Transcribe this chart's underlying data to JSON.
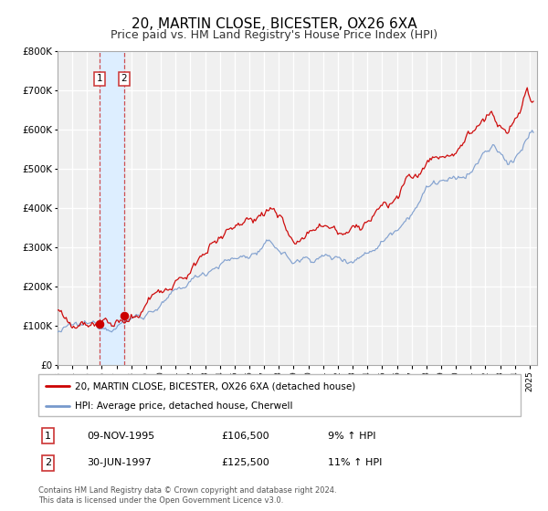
{
  "title": "20, MARTIN CLOSE, BICESTER, OX26 6XA",
  "subtitle": "Price paid vs. HM Land Registry's House Price Index (HPI)",
  "ylim": [
    0,
    800000
  ],
  "yticks": [
    0,
    100000,
    200000,
    300000,
    400000,
    500000,
    600000,
    700000,
    800000
  ],
  "xlim_start": 1993.0,
  "xlim_end": 2025.5,
  "xticks": [
    1993,
    1994,
    1995,
    1996,
    1997,
    1998,
    1999,
    2000,
    2001,
    2002,
    2003,
    2004,
    2005,
    2006,
    2007,
    2008,
    2009,
    2010,
    2011,
    2012,
    2013,
    2014,
    2015,
    2016,
    2017,
    2018,
    2019,
    2020,
    2021,
    2022,
    2023,
    2024,
    2025
  ],
  "sale1_date": 1995.86,
  "sale1_price": 106500,
  "sale2_date": 1997.5,
  "sale2_price": 125500,
  "red_line_color": "#cc0000",
  "blue_line_color": "#7799cc",
  "marker_color": "#cc0000",
  "vband_color": "#ddeeff",
  "vline_color": "#cc3333",
  "legend_label_red": "20, MARTIN CLOSE, BICESTER, OX26 6XA (detached house)",
  "legend_label_blue": "HPI: Average price, detached house, Cherwell",
  "table_row1": [
    "1",
    "09-NOV-1995",
    "£106,500",
    "9% ↑ HPI"
  ],
  "table_row2": [
    "2",
    "30-JUN-1997",
    "£125,500",
    "11% ↑ HPI"
  ],
  "footnote": "Contains HM Land Registry data © Crown copyright and database right 2024.\nThis data is licensed under the Open Government Licence v3.0.",
  "background_color": "#ffffff",
  "plot_bg_color": "#f0f0f0",
  "grid_color": "#ffffff",
  "title_fontsize": 11,
  "subtitle_fontsize": 9
}
